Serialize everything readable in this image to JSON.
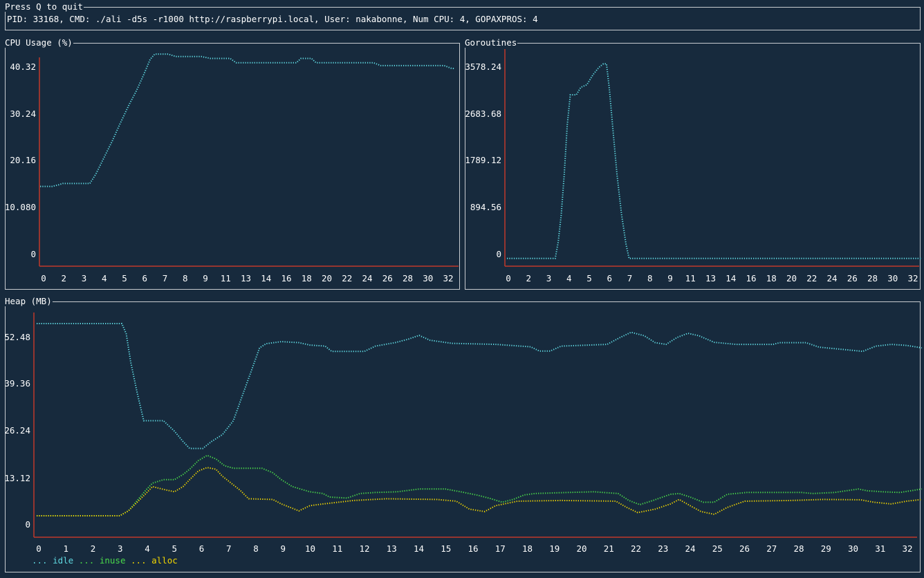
{
  "header": {
    "title": "Press Q to quit",
    "info": "PID: 33168, CMD: ./ali -d5s -r1000 http://raspberrypi.local, User: nakabonne, Num CPU: 4, GOPAXPROS: 4"
  },
  "colors": {
    "background": "#172a3d",
    "border": "#c8ccd0",
    "axis": "#c0392b",
    "idle": "#5fd7e0",
    "inuse": "#4ad94a",
    "alloc": "#f2d600"
  },
  "cpu": {
    "title": "CPU Usage (%)",
    "chart_data": {
      "type": "line",
      "title": "CPU Usage (%)",
      "yticks": [
        "0",
        "10.080",
        "20.16",
        "30.24",
        "40.32"
      ],
      "xticks": [
        "0",
        "2",
        "3",
        "4",
        "5",
        "6",
        "7",
        "8",
        "9",
        "11",
        "13",
        "14",
        "16",
        "18",
        "20",
        "22",
        "24",
        "26",
        "28",
        "30",
        "32"
      ],
      "ylim": [
        0,
        42
      ],
      "series": [
        {
          "color": "#5fd7e0",
          "points": [
            [
              0,
              14.4
            ],
            [
              0.8,
              14.4
            ],
            [
              1.2,
              14.7
            ],
            [
              1.5,
              15
            ],
            [
              3.3,
              15
            ],
            [
              3.7,
              17
            ],
            [
              4.2,
              20.2
            ],
            [
              4.8,
              24
            ],
            [
              5.3,
              27.5
            ],
            [
              5.9,
              31.5
            ],
            [
              6.4,
              34.5
            ],
            [
              6.9,
              38
            ],
            [
              7.3,
              41
            ],
            [
              7.6,
              42.1
            ],
            [
              8.5,
              42.1
            ],
            [
              9,
              41.6
            ],
            [
              10.7,
              41.6
            ],
            [
              11.3,
              41.2
            ],
            [
              12.6,
              41.2
            ],
            [
              13,
              40.3
            ],
            [
              17,
              40.3
            ],
            [
              17.3,
              41.2
            ],
            [
              18,
              41.2
            ],
            [
              18.3,
              40.3
            ],
            [
              22.1,
              40.3
            ],
            [
              22.6,
              39.7
            ],
            [
              26.8,
              39.7
            ],
            [
              27.3,
              39.1
            ],
            [
              27.5,
              39.1
            ]
          ]
        }
      ]
    }
  },
  "goroutines": {
    "title": "Goroutines",
    "chart_data": {
      "type": "line",
      "title": "Goroutines",
      "yticks": [
        "0",
        "894.56",
        "1789.12",
        "2683.68",
        "3578.24"
      ],
      "xticks": [
        "0",
        "2",
        "3",
        "4",
        "5",
        "6",
        "7",
        "8",
        "9",
        "11",
        "13",
        "14",
        "16",
        "18",
        "20",
        "22",
        "24",
        "26",
        "28",
        "30",
        "32"
      ],
      "ylim": [
        0,
        3700
      ],
      "series": [
        {
          "color": "#5fd7e0",
          "points": [
            [
              0,
              -80
            ],
            [
              3.2,
              -80
            ],
            [
              3.4,
              250
            ],
            [
              3.6,
              800
            ],
            [
              3.8,
              1600
            ],
            [
              4,
              2600
            ],
            [
              4.2,
              3200
            ],
            [
              4.6,
              3200
            ],
            [
              4.9,
              3350
            ],
            [
              5.3,
              3400
            ],
            [
              5.7,
              3600
            ],
            [
              6.1,
              3750
            ],
            [
              6.4,
              3820
            ],
            [
              6.6,
              3820
            ],
            [
              6.8,
              3300
            ],
            [
              7,
              2600
            ],
            [
              7.3,
              1600
            ],
            [
              7.6,
              800
            ],
            [
              7.9,
              200
            ],
            [
              8.1,
              -80
            ],
            [
              27.5,
              -80
            ]
          ]
        }
      ]
    }
  },
  "heap": {
    "title": "Heap (MB)",
    "chart_data": {
      "type": "line",
      "title": "Heap (MB)",
      "yticks": [
        "0",
        "13.12",
        "26.24",
        "39.36",
        "52.48"
      ],
      "xticks": [
        "0",
        "1",
        "2",
        "3",
        "4",
        "5",
        "6",
        "7",
        "8",
        "9",
        "10",
        "11",
        "12",
        "13",
        "14",
        "15",
        "16",
        "17",
        "18",
        "19",
        "20",
        "21",
        "22",
        "23",
        "24",
        "25",
        "26",
        "27",
        "28",
        "29",
        "30",
        "31",
        "32"
      ],
      "ylim": [
        0,
        59
      ],
      "series": [
        {
          "name": "idle",
          "color": "#5fd7e0",
          "points": [
            [
              0,
              58
            ],
            [
              3.9,
              58
            ],
            [
              4.1,
              55
            ],
            [
              4.3,
              47
            ],
            [
              4.6,
              38
            ],
            [
              4.9,
              30
            ],
            [
              5.8,
              30
            ],
            [
              6.3,
              27
            ],
            [
              6.7,
              24
            ],
            [
              7,
              22
            ],
            [
              7.6,
              22
            ],
            [
              8,
              24
            ],
            [
              8.5,
              26
            ],
            [
              9,
              30
            ],
            [
              9.4,
              37
            ],
            [
              9.8,
              44
            ],
            [
              10.2,
              51
            ],
            [
              10.5,
              52.2
            ],
            [
              11.2,
              52.8
            ],
            [
              12,
              52.5
            ],
            [
              12.5,
              51.8
            ],
            [
              13.2,
              51.5
            ],
            [
              13.5,
              50
            ],
            [
              15,
              50
            ],
            [
              15.5,
              51.5
            ],
            [
              16.4,
              52.5
            ],
            [
              17,
              53.5
            ],
            [
              17.5,
              54.6
            ],
            [
              18,
              53.2
            ],
            [
              19,
              52.3
            ],
            [
              21,
              52
            ],
            [
              22.6,
              51.3
            ],
            [
              23,
              50.1
            ],
            [
              23.5,
              50.1
            ],
            [
              24,
              51.5
            ],
            [
              26.1,
              52
            ],
            [
              26.7,
              54
            ],
            [
              27.2,
              55.5
            ],
            [
              27.8,
              54.5
            ],
            [
              28.3,
              52.5
            ],
            [
              28.8,
              52
            ],
            [
              29.3,
              54
            ],
            [
              29.8,
              55.2
            ],
            [
              30.3,
              54.5
            ],
            [
              31,
              52.6
            ],
            [
              32,
              52
            ],
            [
              33.7,
              52
            ],
            [
              34,
              52.5
            ],
            [
              35.2,
              52.5
            ],
            [
              35.8,
              51.2
            ],
            [
              37.8,
              50
            ],
            [
              38.4,
              51.5
            ],
            [
              39.1,
              52
            ],
            [
              39.8,
              51.7
            ],
            [
              40.5,
              51
            ]
          ]
        },
        {
          "name": "inuse",
          "color": "#4ad94a",
          "points": [
            [
              0,
              2.6
            ],
            [
              3.8,
              2.6
            ],
            [
              4.2,
              4
            ],
            [
              4.6,
              7
            ],
            [
              5,
              10
            ],
            [
              5.3,
              12
            ],
            [
              5.8,
              13
            ],
            [
              6.3,
              13
            ],
            [
              6.7,
              14.5
            ],
            [
              7,
              16
            ],
            [
              7.4,
              18.5
            ],
            [
              7.8,
              20
            ],
            [
              8.2,
              19
            ],
            [
              8.6,
              17
            ],
            [
              9,
              16.3
            ],
            [
              10.3,
              16.3
            ],
            [
              10.8,
              15
            ],
            [
              11.2,
              13
            ],
            [
              11.7,
              11
            ],
            [
              12.5,
              9.5
            ],
            [
              13.1,
              9
            ],
            [
              13.4,
              8
            ],
            [
              14.2,
              7.7
            ],
            [
              14.8,
              9
            ],
            [
              15.5,
              9.3
            ],
            [
              16.5,
              9.5
            ],
            [
              17.5,
              10.3
            ],
            [
              18.7,
              10.3
            ],
            [
              19.4,
              9.5
            ],
            [
              20.2,
              8.5
            ],
            [
              20.8,
              7.5
            ],
            [
              21.3,
              6.5
            ],
            [
              21.8,
              7.3
            ],
            [
              22.3,
              8.6
            ],
            [
              22.8,
              9
            ],
            [
              24.3,
              9.3
            ],
            [
              25.5,
              9.5
            ],
            [
              26.6,
              9
            ],
            [
              27.1,
              7
            ],
            [
              27.6,
              5.8
            ],
            [
              28.2,
              7
            ],
            [
              29,
              8.8
            ],
            [
              29.4,
              9
            ],
            [
              29.9,
              8
            ],
            [
              30.5,
              6.5
            ],
            [
              31,
              6.5
            ],
            [
              31.6,
              8.8
            ],
            [
              32.5,
              9.3
            ],
            [
              35,
              9.3
            ],
            [
              35.5,
              9
            ],
            [
              36.5,
              9.3
            ],
            [
              37.6,
              10.3
            ],
            [
              38,
              9.8
            ],
            [
              38.7,
              9.5
            ],
            [
              39.5,
              9.3
            ],
            [
              40.5,
              10.3
            ]
          ]
        },
        {
          "name": "alloc",
          "color": "#f2d600",
          "points": [
            [
              0,
              2.6
            ],
            [
              3.8,
              2.6
            ],
            [
              4.2,
              4
            ],
            [
              4.6,
              6.5
            ],
            [
              5,
              9
            ],
            [
              5.3,
              11
            ],
            [
              5.8,
              10.2
            ],
            [
              6.3,
              9.5
            ],
            [
              6.7,
              11
            ],
            [
              7,
              13
            ],
            [
              7.4,
              15.5
            ],
            [
              7.8,
              16.5
            ],
            [
              8.2,
              16
            ],
            [
              8.5,
              14
            ],
            [
              8.9,
              12
            ],
            [
              9.3,
              10
            ],
            [
              9.7,
              7.5
            ],
            [
              10.8,
              7.3
            ],
            [
              11.2,
              6
            ],
            [
              11.6,
              5
            ],
            [
              12,
              4
            ],
            [
              12.5,
              5.5
            ],
            [
              13.1,
              6
            ],
            [
              14.5,
              7
            ],
            [
              16,
              7.5
            ],
            [
              18.3,
              7.3
            ],
            [
              19.2,
              6.8
            ],
            [
              19.8,
              4.5
            ],
            [
              20.5,
              3.8
            ],
            [
              21,
              5.5
            ],
            [
              22,
              6.8
            ],
            [
              24,
              7
            ],
            [
              26.5,
              6.8
            ],
            [
              27,
              5
            ],
            [
              27.5,
              3.5
            ],
            [
              28.3,
              4.5
            ],
            [
              29,
              6
            ],
            [
              29.4,
              7.3
            ],
            [
              29.9,
              5.5
            ],
            [
              30.4,
              3.8
            ],
            [
              31,
              3
            ],
            [
              31.6,
              5
            ],
            [
              32.4,
              6.8
            ],
            [
              34.5,
              7
            ],
            [
              36,
              7.3
            ],
            [
              37.7,
              7.2
            ],
            [
              38.3,
              6.5
            ],
            [
              39.1,
              6
            ],
            [
              39.8,
              6.8
            ],
            [
              40.5,
              7.3
            ]
          ]
        }
      ]
    }
  },
  "legend": [
    {
      "text": "... idle",
      "color": "#5fd7e0"
    },
    {
      "text": "... inuse",
      "color": "#4ad94a"
    },
    {
      "text": "... alloc",
      "color": "#f2d600"
    }
  ]
}
